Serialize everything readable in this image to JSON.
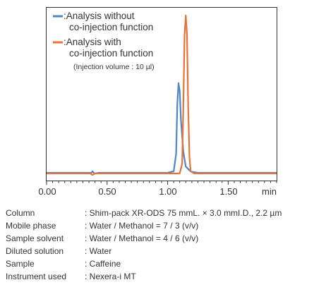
{
  "chart_data": {
    "type": "line",
    "xlabel": "min",
    "xlim": [
      0.0,
      1.9
    ],
    "x_ticks": [
      "0.00",
      "0.50",
      "1.00",
      "1.50"
    ],
    "grid": false,
    "legend_position": "top-left",
    "legend_note": "(Injection volume : 10 µl)",
    "series": [
      {
        "name_lines": [
          ":Analysis without",
          "co-injection function"
        ],
        "color": "#4f86c6",
        "peak_retention_min": 1.09,
        "peak_height_relative": 0.57,
        "points": [
          [
            0.0,
            0.0
          ],
          [
            0.37,
            0.0
          ],
          [
            0.38,
            0.01
          ],
          [
            0.39,
            0.0
          ],
          [
            0.4,
            -0.005
          ],
          [
            0.43,
            0.0
          ],
          [
            1.0,
            0.0
          ],
          [
            1.05,
            0.01
          ],
          [
            1.07,
            0.12
          ],
          [
            1.08,
            0.44
          ],
          [
            1.09,
            0.57
          ],
          [
            1.1,
            0.52
          ],
          [
            1.11,
            0.33
          ],
          [
            1.13,
            0.13
          ],
          [
            1.15,
            0.04
          ],
          [
            1.19,
            0.008
          ],
          [
            1.25,
            0.0
          ],
          [
            1.9,
            0.0
          ]
        ]
      },
      {
        "name_lines": [
          ":Analysis with",
          "co-injection function"
        ],
        "color": "#e8733a",
        "peak_retention_min": 1.15,
        "peak_height_relative": 1.0,
        "points": [
          [
            0.0,
            -0.004
          ],
          [
            0.36,
            -0.004
          ],
          [
            0.38,
            -0.014
          ],
          [
            0.4,
            -0.004
          ],
          [
            1.1,
            -0.004
          ],
          [
            1.12,
            0.06
          ],
          [
            1.13,
            0.45
          ],
          [
            1.14,
            0.88
          ],
          [
            1.15,
            1.0
          ],
          [
            1.16,
            0.88
          ],
          [
            1.17,
            0.42
          ],
          [
            1.18,
            0.1
          ],
          [
            1.19,
            0.01
          ],
          [
            1.22,
            -0.004
          ],
          [
            1.9,
            -0.004
          ]
        ]
      }
    ]
  },
  "conditions": [
    {
      "label": "Column",
      "value": ": Shim-pack XR-ODS 75 mmL. × 3.0 mmI.D., 2.2 µm"
    },
    {
      "label": "Mobile phase",
      "value": ": Water / Methanol = 7 / 3 (v/v)"
    },
    {
      "label": "Sample solvent",
      "value": ": Water / Methanol = 4 / 6 (v/v)"
    },
    {
      "label": "Diluted solution",
      "value": ": Water"
    },
    {
      "label": "Sample",
      "value": ": Caffeine"
    },
    {
      "label": "Instrument used",
      "value": ": Nexera-i MT"
    }
  ]
}
